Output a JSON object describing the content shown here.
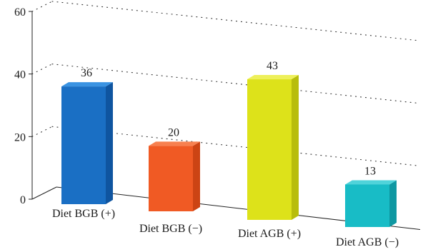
{
  "chart_data": {
    "type": "bar",
    "title": "",
    "xlabel": "",
    "ylabel": "",
    "categories": [
      "Diet BGB (+)",
      "Diet BGB (−)",
      "Diet AGB (+)",
      "Diet AGB (−)"
    ],
    "values": [
      36,
      20,
      43,
      13
    ],
    "value_labels": [
      "36",
      "20",
      "43",
      "13"
    ],
    "yticks": [
      0,
      20,
      40,
      60
    ],
    "ytick_labels": [
      "0",
      "20",
      "40",
      "60"
    ],
    "ylim": [
      0,
      60
    ],
    "grid": true,
    "style": "3d",
    "colors": {
      "Diet BGB (+)": {
        "front": "#1a6fc4",
        "side": "#0f55a0",
        "top": "#3a93e2"
      },
      "Diet BGB (−)": {
        "front": "#f05a24",
        "side": "#cc4414",
        "top": "#f7804f"
      },
      "Diet AGB (+)": {
        "front": "#dde21a",
        "side": "#b8bd0c",
        "top": "#eef05a"
      },
      "Diet AGB (−)": {
        "front": "#18bcc6",
        "side": "#0f98a2",
        "top": "#4fd3da"
      }
    }
  }
}
